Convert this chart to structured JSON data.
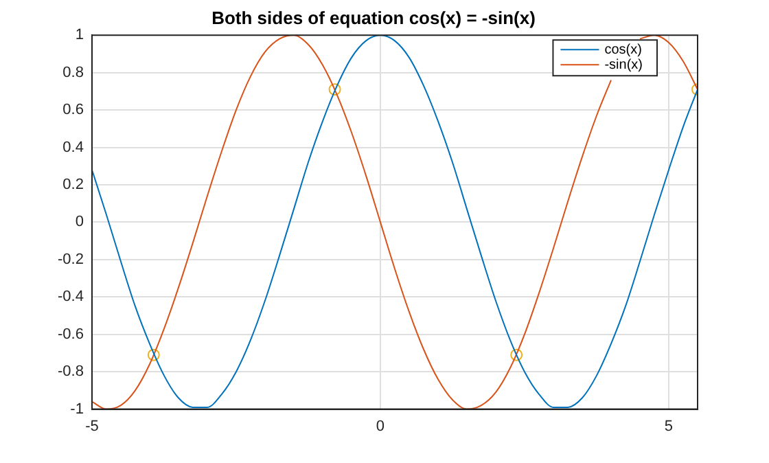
{
  "chart_data": {
    "type": "line",
    "title": "Both sides of equation cos(x) = -sin(x)",
    "x": [
      -5,
      -4.75,
      -4.5,
      -4.25,
      -4,
      -3.75,
      -3.5,
      -3.25,
      -3,
      -2.75,
      -2.5,
      -2.25,
      -2,
      -1.75,
      -1.5,
      -1.25,
      -1,
      -0.75,
      -0.5,
      -0.25,
      0,
      0.25,
      0.5,
      0.75,
      1,
      1.25,
      1.5,
      1.75,
      2,
      2.25,
      2.5,
      2.75,
      3,
      3.25,
      3.5,
      3.75,
      4,
      4.25,
      4.5,
      4.75,
      5,
      5.25,
      5.5
    ],
    "series": [
      {
        "name": "cos(x)",
        "color": "#0072bd",
        "values": [
          0.28,
          0.04,
          -0.21,
          -0.45,
          -0.65,
          -0.82,
          -0.94,
          -0.99,
          -0.99,
          -0.92,
          -0.8,
          -0.63,
          -0.42,
          -0.18,
          0.07,
          0.32,
          0.54,
          0.73,
          0.88,
          0.97,
          1,
          0.97,
          0.88,
          0.73,
          0.54,
          0.32,
          0.07,
          -0.18,
          -0.42,
          -0.63,
          -0.8,
          -0.92,
          -0.99,
          -0.99,
          -0.94,
          -0.82,
          -0.65,
          -0.45,
          -0.21,
          0.04,
          0.28,
          0.51,
          0.71
        ]
      },
      {
        "name": "-sin(x)",
        "color": "#d95319",
        "x": [
          -5,
          -4.75,
          -4.5,
          -4.25,
          -4,
          -3.75,
          -3.5,
          -3.25,
          -3,
          -2.75,
          -2.5,
          -2.25,
          -2,
          -1.75,
          -1.5,
          -1.25,
          -1,
          -0.75,
          -0.5,
          -0.25,
          0,
          0.25,
          0.5,
          0.75,
          1,
          1.25,
          1.5,
          1.75,
          2,
          2.25,
          2.5,
          2.75,
          3,
          3.25,
          3.5,
          3.75,
          4,
          4.25,
          4.5,
          4.75,
          5,
          5.25,
          5.5
        ],
        "values": [
          -0.96,
          -1,
          -0.98,
          -0.9,
          -0.76,
          -0.57,
          -0.35,
          -0.11,
          0.14,
          0.38,
          0.6,
          0.78,
          0.91,
          0.98,
          1,
          0.95,
          0.84,
          0.68,
          0.48,
          0.25,
          0,
          -0.25,
          -0.48,
          -0.68,
          -0.84,
          -0.95,
          -1,
          -0.98,
          -0.91,
          -0.78,
          -0.6,
          -0.38,
          -0.14,
          0.11,
          0.35,
          0.57,
          0.76,
          null,
          0.98,
          1,
          0.96,
          0.86,
          0.71
        ]
      },
      {
        "type": "scatter",
        "color": "#edb120",
        "marker": "circle",
        "x": [
          -3.93,
          -0.79,
          2.36,
          5.5
        ],
        "values": [
          -0.71,
          0.71,
          -0.71,
          0.71
        ]
      }
    ],
    "xlim": [
      -5,
      5.5
    ],
    "xticks": [
      -5,
      0,
      5
    ],
    "ylim": [
      -1,
      1
    ],
    "yticks": [
      -1,
      -0.8,
      -0.6,
      -0.4,
      -0.2,
      0,
      0.2,
      0.4,
      0.6,
      0.8,
      1
    ],
    "grid": true,
    "legend": "top right",
    "marker": "none",
    "line_style": "solid"
  }
}
